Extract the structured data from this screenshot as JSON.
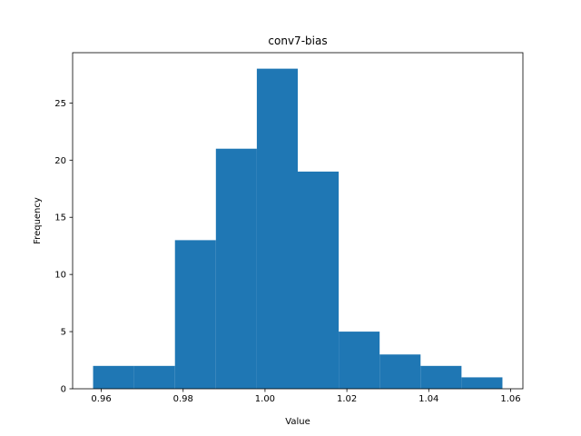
{
  "chart_data": {
    "type": "bar",
    "histogram": true,
    "title": "conv7-bias",
    "xlabel": "Value",
    "ylabel": "Frequency",
    "bin_edges": [
      0.958,
      0.968,
      0.978,
      0.988,
      0.998,
      1.008,
      1.018,
      1.028,
      1.038,
      1.048,
      1.058
    ],
    "values": [
      2,
      2,
      13,
      21,
      28,
      19,
      5,
      3,
      2,
      1
    ],
    "xlim": [
      0.953,
      1.063
    ],
    "ylim": [
      0,
      29.4
    ],
    "xticks": [
      0.96,
      0.98,
      1.0,
      1.02,
      1.04,
      1.06
    ],
    "xtick_labels": [
      "0.96",
      "0.98",
      "1.00",
      "1.02",
      "1.04",
      "1.06"
    ],
    "yticks": [
      0,
      5,
      10,
      15,
      20,
      25
    ],
    "ytick_labels": [
      "0",
      "5",
      "10",
      "15",
      "20",
      "25"
    ],
    "bar_color": "#1f77b4",
    "grid": false,
    "legend": "none"
  }
}
